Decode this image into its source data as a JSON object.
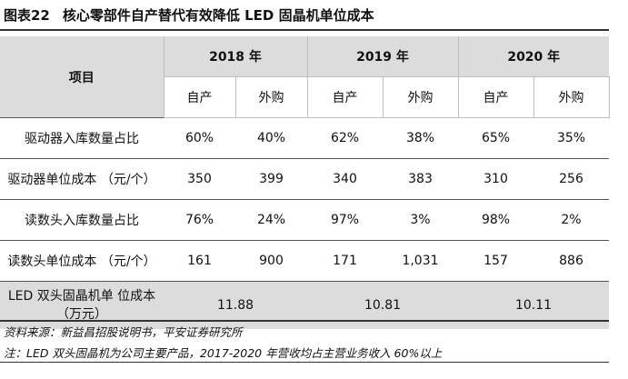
{
  "title": {
    "figure": "图表22",
    "text": "核心零部件自产替代有效降低 LED 固晶机单位成本"
  },
  "header": {
    "item_label": "项目",
    "years": [
      "2018 年",
      "2019 年",
      "2020 年"
    ],
    "sub": [
      "自产",
      "外购",
      "自产",
      "外购",
      "自产",
      "外购"
    ]
  },
  "rows": [
    {
      "label": "驱动器入库数量占比",
      "cells": [
        "60%",
        "40%",
        "62%",
        "38%",
        "65%",
        "35%"
      ]
    },
    {
      "label": "驱动器单位成本 （元/个）",
      "cells": [
        "350",
        "399",
        "340",
        "383",
        "310",
        "256"
      ]
    },
    {
      "label": "读数头入库数量占比",
      "cells": [
        "76%",
        "24%",
        "97%",
        "3%",
        "98%",
        "2%"
      ]
    },
    {
      "label": "读数头单位成本 （元/个）",
      "cells": [
        "161",
        "900",
        "171",
        "1,031",
        "157",
        "886"
      ]
    }
  ],
  "total": {
    "label": "LED 双头固晶机单 位成本（万元）",
    "values": [
      "11.88",
      "10.81",
      "10.11"
    ]
  },
  "notes": {
    "source": "资料来源：新益昌招股说明书，平安证券研究所",
    "note": "注：LED 双头固晶机为公司主要产品，2017-2020 年营收均占主营业务收入 60%以上"
  }
}
